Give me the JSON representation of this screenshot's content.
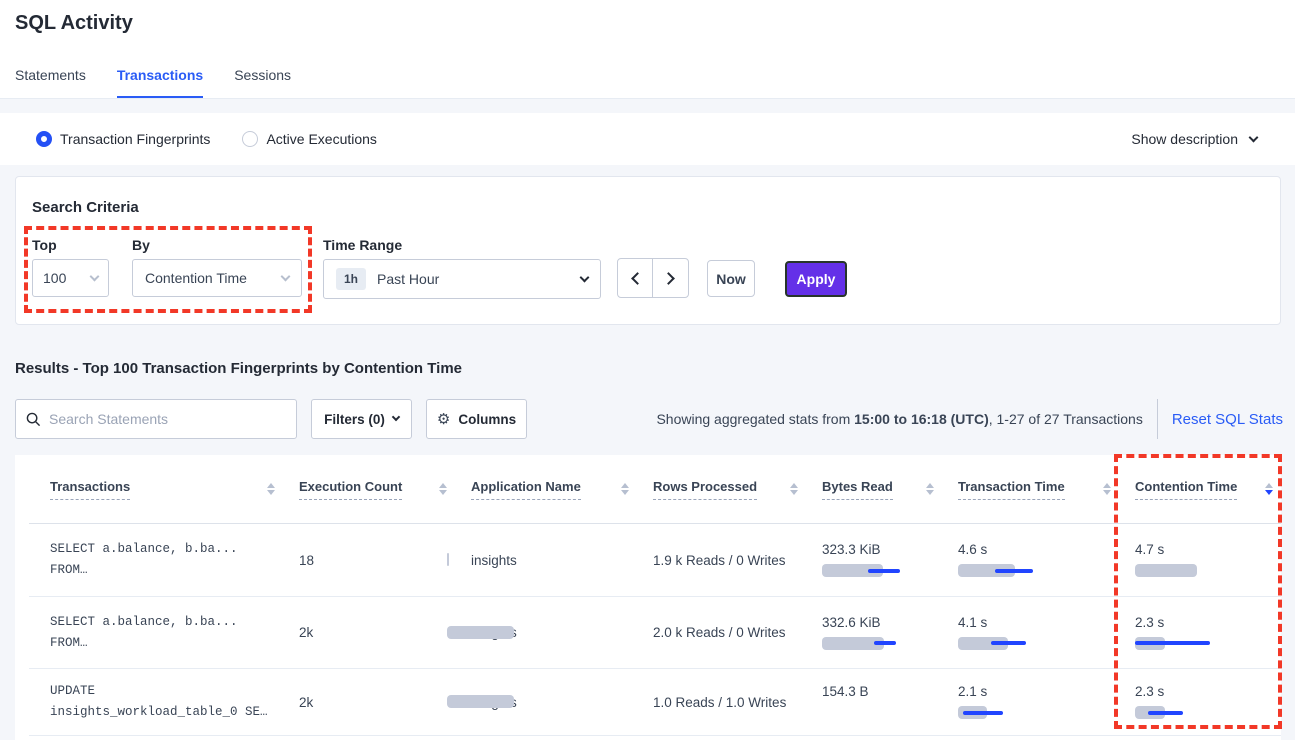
{
  "colors": {
    "accent_blue": "#2a5cf6",
    "bar_blue": "#2145ff",
    "bar_gray": "#c4cad9",
    "annotation_red": "#f23827",
    "apply_purple": "#6430e8"
  },
  "header": {
    "title": "SQL Activity",
    "tabs": [
      {
        "label": "Statements",
        "active": false
      },
      {
        "label": "Transactions",
        "active": true
      },
      {
        "label": "Sessions",
        "active": false
      }
    ]
  },
  "view_toggle": {
    "options": [
      {
        "label": "Transaction Fingerprints",
        "selected": true
      },
      {
        "label": "Active Executions",
        "selected": false
      }
    ],
    "show_description_label": "Show description"
  },
  "search_criteria": {
    "heading": "Search Criteria",
    "top_label": "Top",
    "top_value": "100",
    "by_label": "By",
    "by_value": "Contention Time",
    "time_range_label": "Time Range",
    "time_badge": "1h",
    "time_value": "Past Hour",
    "now_label": "Now",
    "apply_label": "Apply"
  },
  "results": {
    "heading": "Results - Top 100 Transaction Fingerprints by Contention Time",
    "search_placeholder": "Search Statements",
    "filters_label": "Filters (0)",
    "columns_label": "Columns",
    "stats_prefix": "Showing aggregated stats from ",
    "stats_bold": "15:00 to 16:18 (UTC)",
    "stats_suffix": ", 1-27 of 27 Transactions",
    "reset_label": "Reset SQL Stats"
  },
  "table": {
    "headers": [
      "Transactions",
      "Execution Count",
      "Application Name",
      "Rows Processed",
      "Bytes Read",
      "Transaction Time",
      "Contention Time"
    ],
    "sort": {
      "column": "Contention Time",
      "direction": "desc"
    },
    "rows": [
      {
        "query_line1": "SELECT a.balance, b.ba...",
        "query_line2": "FROM…",
        "execution_count": "18",
        "application_name": "insights",
        "rows_processed": "1.9 k Reads / 0 Writes",
        "bytes_read": "323.3 KiB",
        "transaction_time": "4.6 s",
        "contention_time": "4.7 s",
        "bars": {
          "exec": {
            "gray": [
              74,
              2
            ]
          },
          "bytes": {
            "gray": [
              0,
              61
            ],
            "blue": [
              46,
              32
            ]
          },
          "txn": {
            "gray": [
              0,
              57
            ],
            "blue": [
              37,
              38
            ]
          },
          "cont": {
            "gray": [
              0,
              62
            ]
          }
        }
      },
      {
        "query_line1": "SELECT a.balance, b.ba...",
        "query_line2": "FROM…",
        "execution_count": "2k",
        "application_name": "insights",
        "rows_processed": "2.0 k Reads / 0 Writes",
        "bytes_read": "332.6 KiB",
        "transaction_time": "4.1 s",
        "contention_time": "2.3 s",
        "bars": {
          "exec": {
            "gray": [
              74,
              67
            ]
          },
          "bytes": {
            "gray": [
              0,
              62
            ],
            "blue": [
              52,
              22
            ]
          },
          "txn": {
            "gray": [
              0,
              50
            ],
            "blue": [
              33,
              35
            ]
          },
          "cont": {
            "gray": [
              0,
              30
            ],
            "blue": [
              0,
              75
            ]
          }
        }
      },
      {
        "query_line1": "UPDATE",
        "query_line2": "insights_workload_table_0 SE…",
        "execution_count": "2k",
        "application_name": "insights",
        "rows_processed": "1.0 Reads / 1.0 Writes",
        "bytes_read": "154.3 B",
        "transaction_time": "2.1 s",
        "contention_time": "2.3 s",
        "bars": {
          "exec": {
            "gray": [
              74,
              67
            ]
          },
          "bytes": null,
          "txn": {
            "gray": [
              0,
              29
            ],
            "blue": [
              5,
              40
            ]
          },
          "cont": {
            "gray": [
              0,
              30
            ],
            "blue": [
              13,
              35
            ]
          }
        }
      }
    ]
  }
}
